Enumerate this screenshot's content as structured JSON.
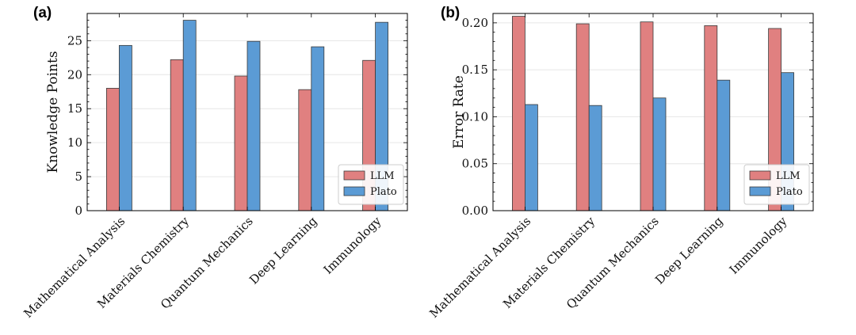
{
  "chart_data": [
    {
      "type": "bar",
      "panel_label": "(a)",
      "categories": [
        "Mathematical Analysis",
        "Materials Chemistry",
        "Quantum Mechanics",
        "Deep Learning",
        "Immunology"
      ],
      "series": [
        {
          "name": "LLM",
          "values": [
            18.0,
            22.2,
            19.8,
            17.8,
            22.1
          ],
          "color": "#e08080"
        },
        {
          "name": "Plato",
          "values": [
            24.3,
            28.0,
            24.9,
            24.1,
            27.7
          ],
          "color": "#5b9bd5"
        }
      ],
      "ylabel": "Knowledge Points",
      "ylim": [
        0,
        29
      ],
      "yticks": [
        0,
        5,
        10,
        15,
        20,
        25
      ],
      "ytick_labels": [
        "0",
        "5",
        "10",
        "15",
        "20",
        "25"
      ],
      "grid": true,
      "legend": "bottom-right"
    },
    {
      "type": "bar",
      "panel_label": "(b)",
      "categories": [
        "Mathematical Analysis",
        "Materials Chemistry",
        "Quantum Mechanics",
        "Deep Learning",
        "Immunology"
      ],
      "series": [
        {
          "name": "LLM",
          "values": [
            0.207,
            0.199,
            0.201,
            0.197,
            0.194
          ],
          "color": "#e08080"
        },
        {
          "name": "Plato",
          "values": [
            0.113,
            0.112,
            0.12,
            0.139,
            0.147
          ],
          "color": "#5b9bd5"
        }
      ],
      "ylabel": "Error Rate",
      "ylim": [
        0,
        0.21
      ],
      "yticks": [
        0,
        0.05,
        0.1,
        0.15,
        0.2
      ],
      "ytick_labels": [
        "0.00",
        "0.05",
        "0.10",
        "0.15",
        "0.20"
      ],
      "grid": true,
      "legend": "bottom-right"
    }
  ]
}
